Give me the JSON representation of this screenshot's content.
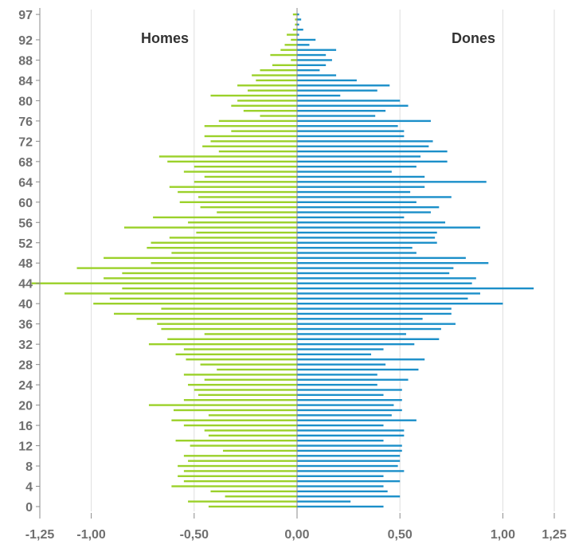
{
  "chart_data": {
    "type": "bar",
    "orientation": "horizontal",
    "layout": "population-pyramid",
    "title": "",
    "xlabel": "",
    "ylabel": "",
    "xlim": [
      -1.25,
      1.25
    ],
    "ylim": [
      0,
      98
    ],
    "grid": "vertical",
    "x_ticks": [
      -1.25,
      -1.0,
      -0.5,
      0,
      0.5,
      1.0,
      1.25
    ],
    "x_tick_labels": [
      "-1,25",
      "-1,00",
      "-0,50",
      "0,00",
      "0,50",
      "1,00",
      "1,25"
    ],
    "y_ticks": [
      0,
      4,
      8,
      12,
      16,
      20,
      24,
      28,
      32,
      36,
      40,
      44,
      48,
      52,
      56,
      60,
      64,
      68,
      72,
      76,
      80,
      84,
      88,
      92,
      97
    ],
    "y_tick_labels": [
      "0",
      "4",
      "8",
      "12",
      "16",
      "20",
      "24",
      "28",
      "32",
      "36",
      "40",
      "44",
      "48",
      "52",
      "56",
      "60",
      "64",
      "68",
      "72",
      "76",
      "80",
      "84",
      "88",
      "92",
      "97"
    ],
    "categories": [
      0,
      1,
      2,
      3,
      4,
      5,
      6,
      7,
      8,
      9,
      10,
      11,
      12,
      13,
      14,
      15,
      16,
      17,
      18,
      19,
      20,
      21,
      22,
      23,
      24,
      25,
      26,
      27,
      28,
      29,
      30,
      31,
      32,
      33,
      34,
      35,
      36,
      37,
      38,
      39,
      40,
      41,
      42,
      43,
      44,
      45,
      46,
      47,
      48,
      49,
      50,
      51,
      52,
      53,
      54,
      55,
      56,
      57,
      58,
      59,
      60,
      61,
      62,
      63,
      64,
      65,
      66,
      67,
      68,
      69,
      70,
      71,
      72,
      73,
      74,
      75,
      76,
      77,
      78,
      79,
      80,
      81,
      82,
      83,
      84,
      85,
      86,
      87,
      88,
      89,
      90,
      91,
      92,
      93,
      94,
      95,
      96,
      97
    ],
    "series": [
      {
        "name": "Homes",
        "color": "#9bd12a",
        "label_position": "top-left",
        "values": [
          -0.43,
          -0.53,
          -0.35,
          -0.42,
          -0.61,
          -0.55,
          -0.58,
          -0.55,
          -0.58,
          -0.53,
          -0.55,
          -0.36,
          -0.52,
          -0.59,
          -0.43,
          -0.45,
          -0.55,
          -0.61,
          -0.43,
          -0.6,
          -0.72,
          -0.55,
          -0.48,
          -0.5,
          -0.53,
          -0.45,
          -0.55,
          -0.39,
          -0.47,
          -0.54,
          -0.59,
          -0.55,
          -0.72,
          -0.63,
          -0.45,
          -0.66,
          -0.68,
          -0.78,
          -0.89,
          -0.66,
          -0.99,
          -0.91,
          -1.13,
          -0.85,
          -1.29,
          -0.94,
          -0.85,
          -1.07,
          -0.71,
          -0.94,
          -0.61,
          -0.73,
          -0.71,
          -0.62,
          -0.49,
          -0.84,
          -0.53,
          -0.7,
          -0.39,
          -0.47,
          -0.57,
          -0.48,
          -0.58,
          -0.62,
          -0.5,
          -0.45,
          -0.55,
          -0.5,
          -0.63,
          -0.67,
          -0.38,
          -0.46,
          -0.42,
          -0.45,
          -0.32,
          -0.45,
          -0.38,
          -0.18,
          -0.26,
          -0.32,
          -0.29,
          -0.42,
          -0.24,
          -0.29,
          -0.2,
          -0.22,
          -0.18,
          -0.12,
          -0.03,
          -0.13,
          -0.08,
          -0.06,
          -0.03,
          -0.05,
          -0.02,
          -0.01,
          -0.01,
          -0.02
        ]
      },
      {
        "name": "Dones",
        "color": "#1b8fc9",
        "label_position": "top-right",
        "values": [
          0.42,
          0.26,
          0.5,
          0.44,
          0.42,
          0.5,
          0.42,
          0.52,
          0.49,
          0.5,
          0.5,
          0.51,
          0.51,
          0.42,
          0.52,
          0.52,
          0.42,
          0.58,
          0.46,
          0.51,
          0.47,
          0.51,
          0.42,
          0.51,
          0.39,
          0.54,
          0.39,
          0.59,
          0.43,
          0.62,
          0.36,
          0.42,
          0.57,
          0.69,
          0.53,
          0.7,
          0.77,
          0.61,
          0.75,
          0.75,
          1.0,
          0.83,
          0.89,
          1.15,
          0.85,
          0.87,
          0.74,
          0.76,
          0.93,
          0.82,
          0.58,
          0.56,
          0.68,
          0.67,
          0.68,
          0.89,
          0.72,
          0.52,
          0.65,
          0.69,
          0.58,
          0.75,
          0.55,
          0.62,
          0.92,
          0.62,
          0.46,
          0.58,
          0.73,
          0.6,
          0.73,
          0.64,
          0.66,
          0.52,
          0.52,
          0.49,
          0.65,
          0.38,
          0.43,
          0.54,
          0.5,
          0.21,
          0.39,
          0.45,
          0.29,
          0.19,
          0.11,
          0.14,
          0.17,
          0.14,
          0.19,
          0.06,
          0.09,
          0.01,
          0.03,
          0.01,
          0.02,
          0.01
        ]
      }
    ]
  },
  "colors": {
    "grid": "#dedede",
    "axis": "#8a8a8a",
    "tick_text": "#6f6f6f",
    "label_text": "#333333"
  }
}
